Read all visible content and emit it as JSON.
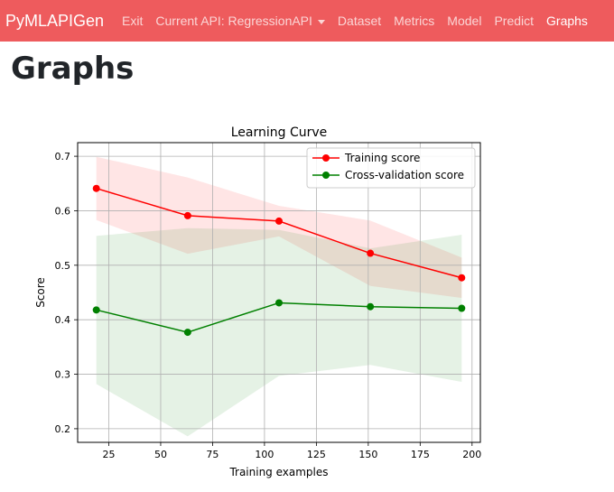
{
  "navbar": {
    "brand": "PyMLAPIGen",
    "items": [
      {
        "label": "Exit"
      },
      {
        "label": "Current API: RegressionAPI"
      },
      {
        "label": "Dataset"
      },
      {
        "label": "Metrics"
      },
      {
        "label": "Model"
      },
      {
        "label": "Predict"
      },
      {
        "label": "Graphs"
      }
    ],
    "active_item": "Graphs",
    "background_color": "#ee5b5d"
  },
  "page": {
    "title": "Graphs"
  },
  "chart_data": {
    "type": "line",
    "title": "Learning Curve",
    "xlabel": "Training examples",
    "ylabel": "Score",
    "xlim": [
      10,
      204
    ],
    "ylim": [
      0.175,
      0.725
    ],
    "x_ticks": [
      25,
      50,
      75,
      100,
      125,
      150,
      175,
      200
    ],
    "y_ticks": [
      0.2,
      0.3,
      0.4,
      0.5,
      0.6,
      0.7
    ],
    "grid": true,
    "legend_position": "top-right",
    "x": [
      19,
      63,
      107,
      151,
      195
    ],
    "series": [
      {
        "name": "Training score",
        "color": "#ff0000",
        "values": [
          0.641,
          0.591,
          0.581,
          0.522,
          0.477
        ],
        "band_lower": [
          0.583,
          0.521,
          0.553,
          0.462,
          0.44
        ],
        "band_upper": [
          0.699,
          0.661,
          0.609,
          0.582,
          0.514
        ]
      },
      {
        "name": "Cross-validation score",
        "color": "#008000",
        "values": [
          0.418,
          0.377,
          0.431,
          0.424,
          0.421
        ],
        "band_lower": [
          0.282,
          0.186,
          0.297,
          0.317,
          0.286
        ],
        "band_upper": [
          0.554,
          0.568,
          0.565,
          0.531,
          0.556
        ]
      }
    ]
  }
}
